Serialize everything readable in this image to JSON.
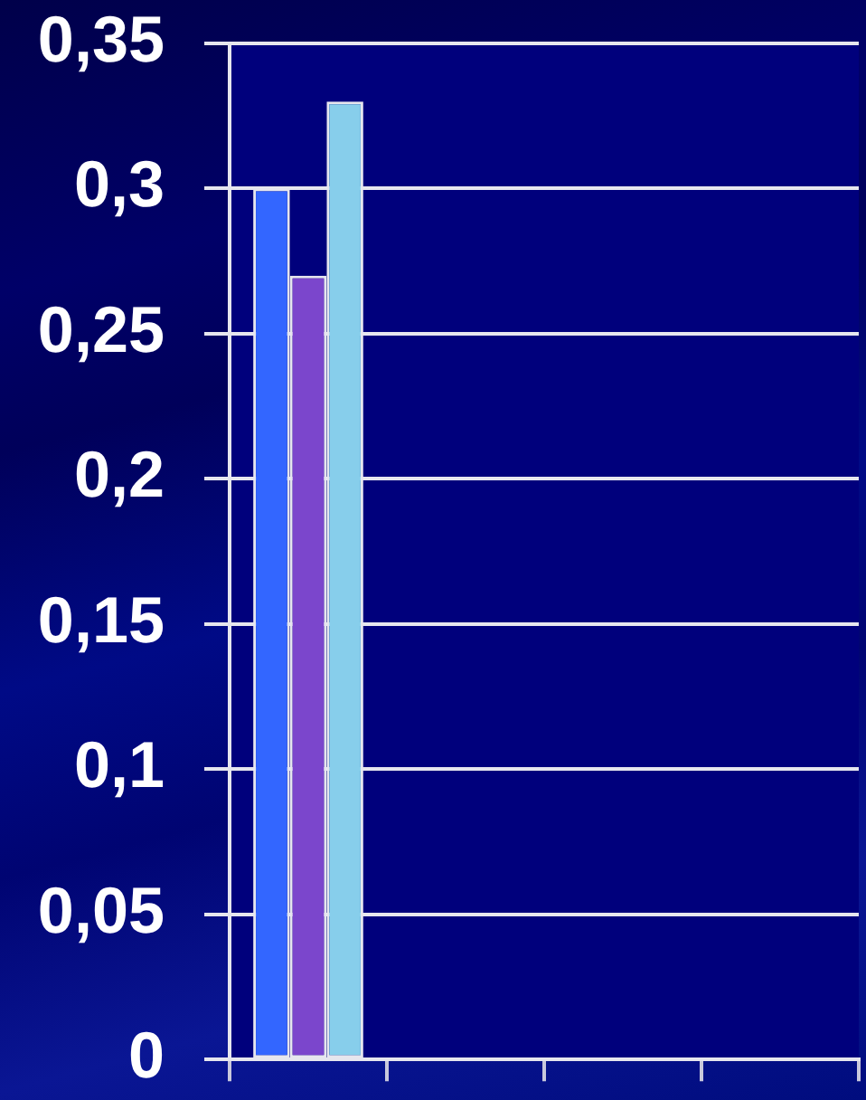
{
  "chart_data": {
    "type": "bar",
    "categories": [
      null,
      null,
      null,
      null
    ],
    "series": [
      {
        "color": "#3366ff",
        "values": [
          0.3,
          0,
          0,
          0
        ]
      },
      {
        "color": "#7b46cc",
        "values": [
          0.27,
          0,
          0,
          0
        ]
      },
      {
        "color": "#87ceeb",
        "values": [
          0.33,
          0,
          0,
          0
        ]
      }
    ],
    "ylim": [
      0,
      0.35
    ],
    "yticks": [
      0,
      {
        "value": 0.05,
        "label": "0,05"
      },
      {
        "value": 0.1,
        "label": "0,1"
      },
      {
        "value": 0.15,
        "label": "0,15"
      },
      {
        "value": 0.2,
        "label": "0,2"
      },
      {
        "value": 0.25,
        "label": "0,25"
      },
      {
        "value": 0.3,
        "label": "0,3"
      },
      {
        "value": 0.35,
        "label": "0,35"
      }
    ],
    "grid": "y",
    "tick_labels": "y",
    "legend": false
  }
}
